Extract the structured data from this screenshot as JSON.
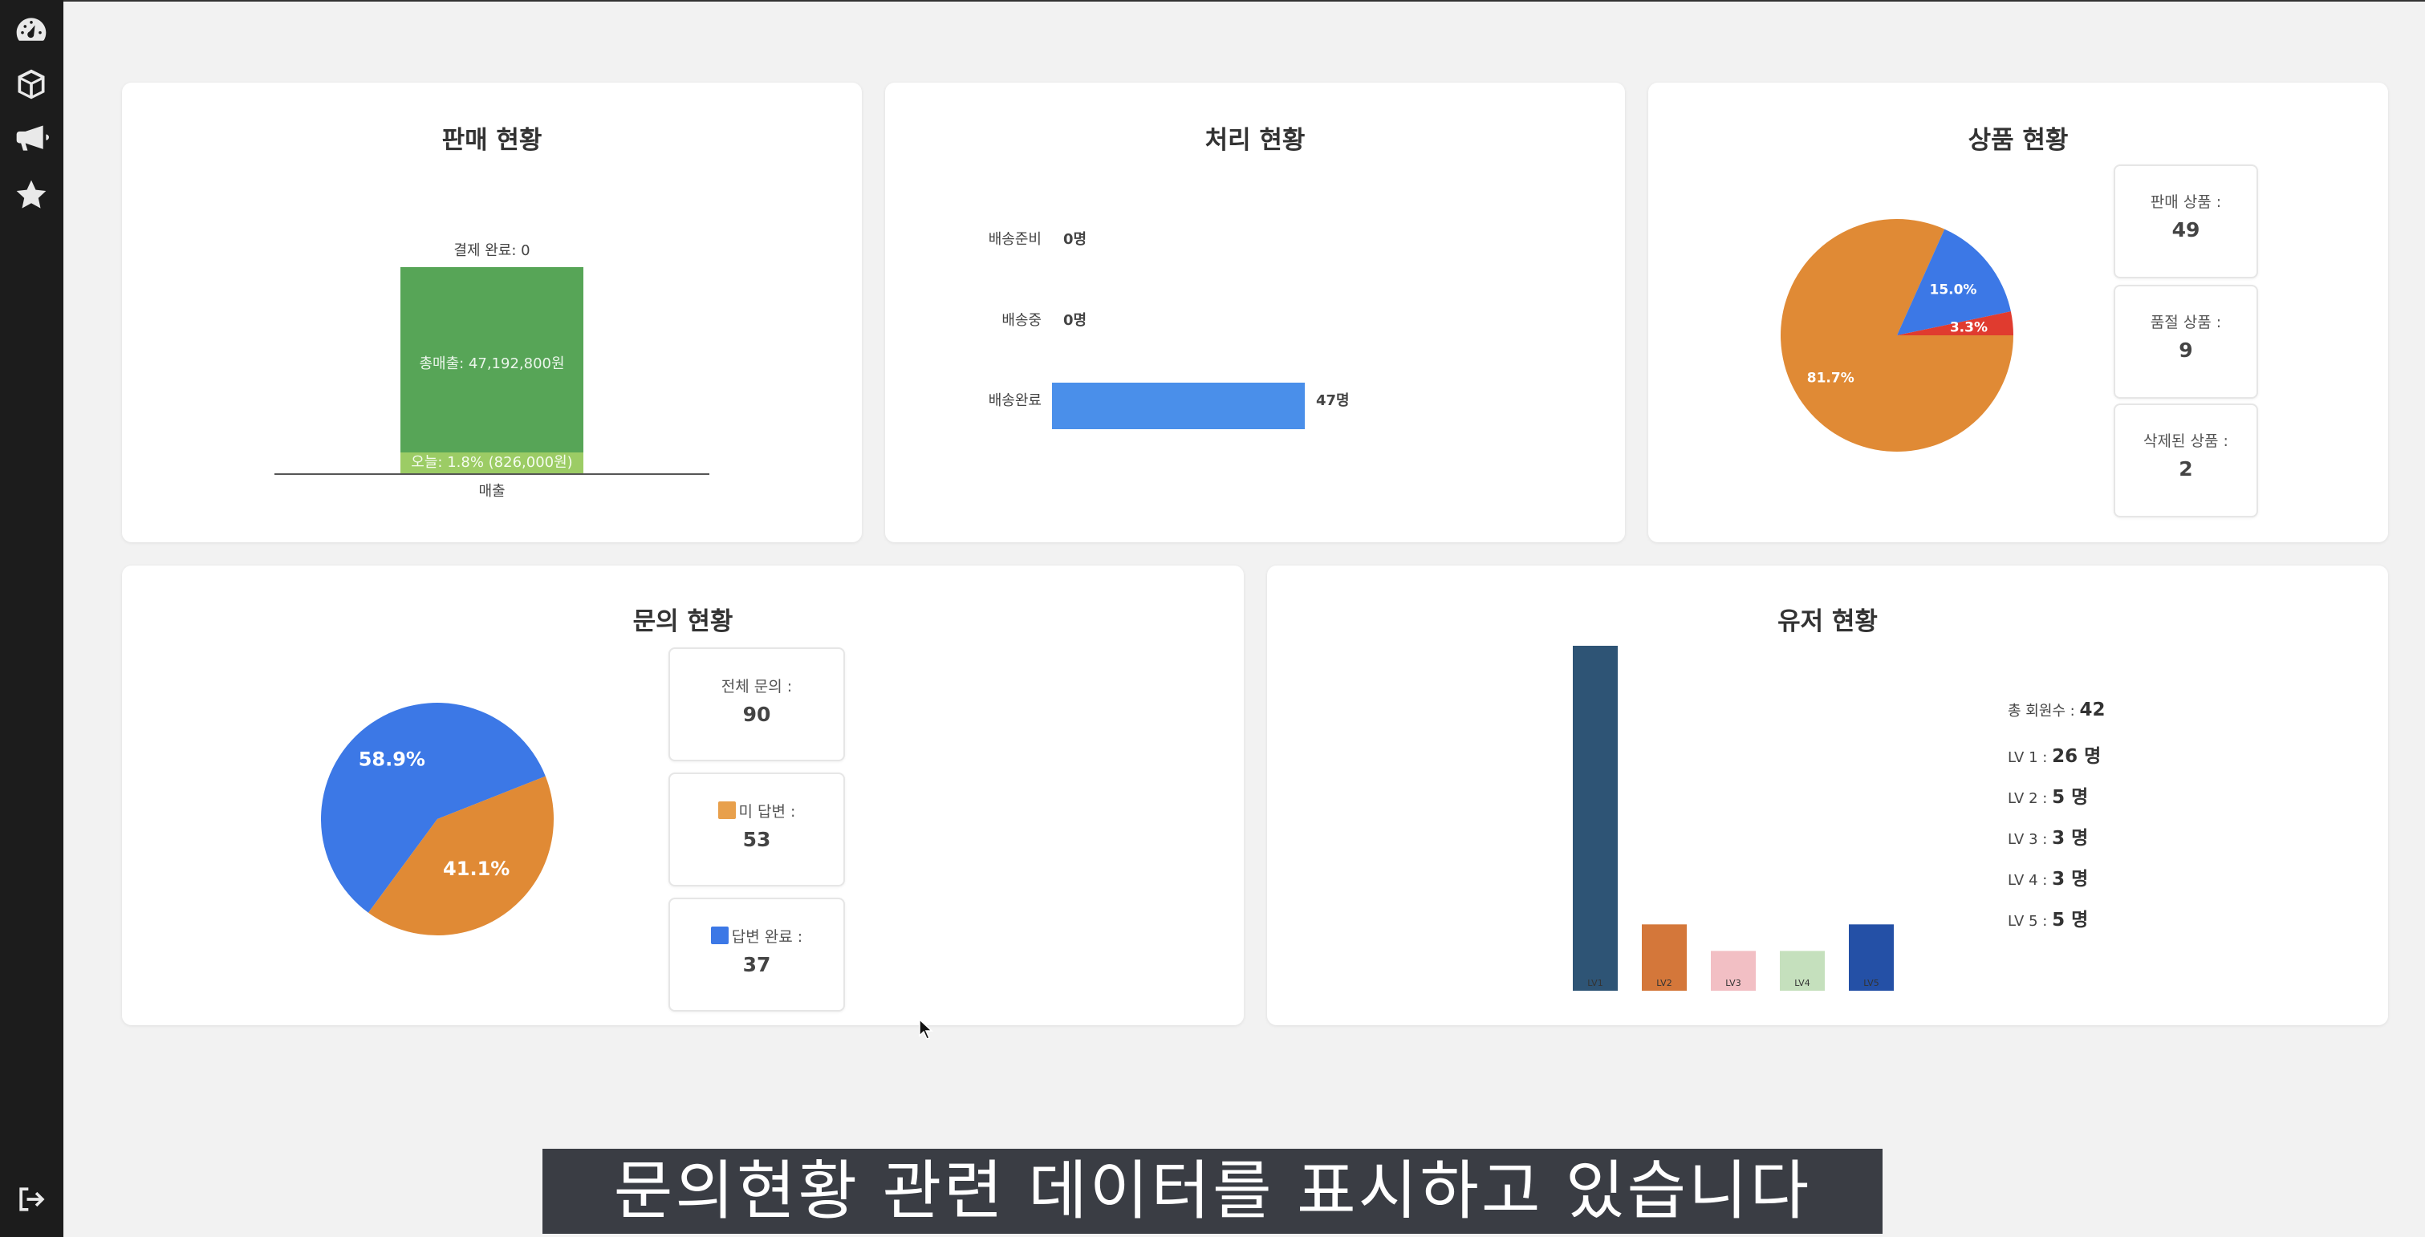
{
  "sidebar": {
    "items": [
      {
        "icon": "dashboard-icon"
      },
      {
        "icon": "box-icon"
      },
      {
        "icon": "megaphone-icon"
      },
      {
        "icon": "star-icon"
      }
    ],
    "logout_icon": "logout-icon"
  },
  "sales": {
    "title": "판매 현황",
    "paid_label": "결제 완료: 0",
    "total_label": "총매출: 47,192,800원",
    "today_label": "오늘: 1.8% (826,000원)",
    "axis_label": "매출",
    "colors": {
      "total": "#57a557",
      "today": "#9ccc65"
    },
    "chart_data": {
      "type": "bar",
      "categories": [
        "매출"
      ],
      "series": [
        {
          "name": "총매출",
          "values": [
            47192800
          ]
        },
        {
          "name": "오늘",
          "values": [
            826000
          ]
        }
      ],
      "today_percent": 1.8,
      "paid_count": 0
    }
  },
  "processing": {
    "title": "처리 현황",
    "rows": [
      {
        "label": "배송준비",
        "value": "0명"
      },
      {
        "label": "배송중",
        "value": "0명"
      },
      {
        "label": "배송완료",
        "value": "47명"
      }
    ],
    "bar_color": "#4a8fea",
    "chart_data": {
      "type": "bar",
      "categories": [
        "배송준비",
        "배송중",
        "배송완료"
      ],
      "values": [
        0,
        0,
        47
      ]
    }
  },
  "products": {
    "title": "상품 현황",
    "slice_labels": [
      "81.7%",
      "15.0%",
      "3.3%"
    ],
    "colors": [
      "#e08a35",
      "#3c78e6",
      "#e03b2f"
    ],
    "chart_data": {
      "type": "pie",
      "values": [
        81.7,
        15.0,
        3.3
      ]
    },
    "boxes": [
      {
        "label": "판매 상품 :",
        "value": "49"
      },
      {
        "label": "품절 상품 :",
        "value": "9"
      },
      {
        "label": "삭제된 상품 :",
        "value": "2"
      }
    ]
  },
  "inquiries": {
    "title": "문의 현황",
    "slice_labels": [
      "58.9%",
      "41.1%"
    ],
    "colors": [
      "#3c78e6",
      "#e08a35"
    ],
    "chart_data": {
      "type": "pie",
      "values": [
        58.9,
        41.1
      ]
    },
    "boxes": [
      {
        "label": "전체 문의 :",
        "value": "90"
      },
      {
        "label": "미 답변 :",
        "value": "53",
        "swatch": "#e8a04c"
      },
      {
        "label": "답변 완료 :",
        "value": "37",
        "swatch": "#3c78e6"
      }
    ]
  },
  "users": {
    "title": "유저 현황",
    "chart_data": {
      "type": "bar",
      "categories": [
        "LV1",
        "LV2",
        "LV3",
        "LV4",
        "LV5"
      ],
      "values": [
        26,
        5,
        3,
        3,
        5
      ],
      "colors": [
        "#2e5475",
        "#d4773a",
        "#f2bfc4",
        "#c5e0bd",
        "#2450a6"
      ]
    },
    "stats": [
      {
        "label": "총 회원수 :",
        "value": "42"
      },
      {
        "label": "LV 1 :",
        "value": "26 명"
      },
      {
        "label": "LV 2 :",
        "value": "5 명"
      },
      {
        "label": "LV 3 :",
        "value": "3 명"
      },
      {
        "label": "LV 4 :",
        "value": "3 명"
      },
      {
        "label": "LV 5 :",
        "value": "5 명"
      }
    ]
  },
  "caption": "문의현황 관련 데이터를 표시하고 있습니다"
}
